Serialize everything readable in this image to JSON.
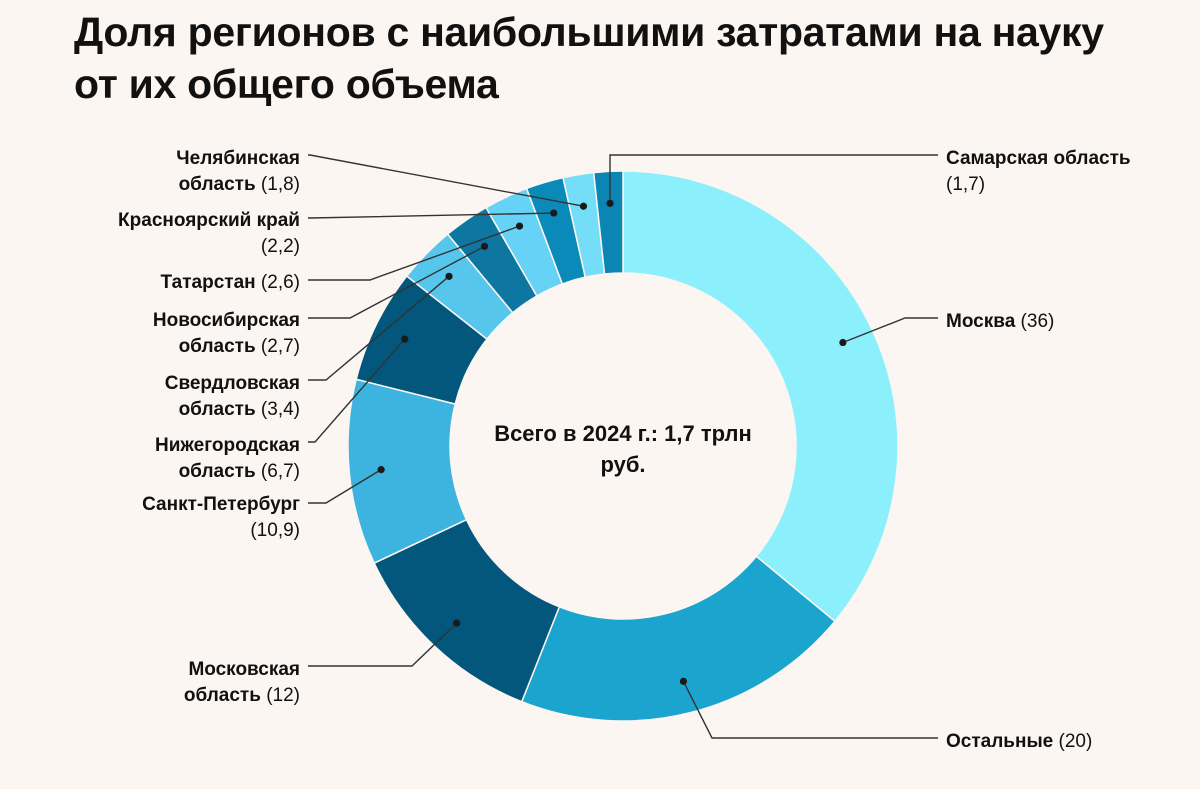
{
  "chart_data": {
    "type": "pie",
    "title_lines": [
      "Доля регионов с наибольшими затратами на науку",
      "от их общего объема"
    ],
    "center_text_lines": [
      "Всего в 2024 г.: 1,7 трлн",
      "руб."
    ],
    "slices": [
      {
        "label_lines": [
          "Москва"
        ],
        "value_text": "(36)",
        "value": 36,
        "color": "#8cf0fc"
      },
      {
        "label_lines": [
          "Остальные"
        ],
        "value_text": "(20)",
        "value": 20,
        "color": "#1ba5ce"
      },
      {
        "label_lines": [
          "Московская",
          "область"
        ],
        "value_text": "(12)",
        "value": 12,
        "color": "#03567c"
      },
      {
        "label_lines": [
          "Санкт-Петербург"
        ],
        "value_text": "(10,9)",
        "value": 10.9,
        "color": "#3cb4df"
      },
      {
        "label_lines": [
          "Нижегородская",
          "область"
        ],
        "value_text": "(6,7)",
        "value": 6.7,
        "color": "#03567c"
      },
      {
        "label_lines": [
          "Свердловская",
          "область"
        ],
        "value_text": "(3,4)",
        "value": 3.4,
        "color": "#56c6ec"
      },
      {
        "label_lines": [
          "Новосибирская",
          "область"
        ],
        "value_text": "(2,7)",
        "value": 2.7,
        "color": "#0d77a2"
      },
      {
        "label_lines": [
          "Татарстан"
        ],
        "value_text": "(2,6)",
        "value": 2.6,
        "color": "#66d2f6"
      },
      {
        "label_lines": [
          "Красноярский край"
        ],
        "value_text": "(2,2)",
        "value": 2.2,
        "color": "#0a8ab8"
      },
      {
        "label_lines": [
          "Челябинская",
          "область"
        ],
        "value_text": "(1,8)",
        "value": 1.8,
        "color": "#74def8"
      },
      {
        "label_lines": [
          "Самарская область"
        ],
        "value_text": "(1,7)",
        "value": 1.7,
        "color": "#0b86b4"
      }
    ]
  }
}
